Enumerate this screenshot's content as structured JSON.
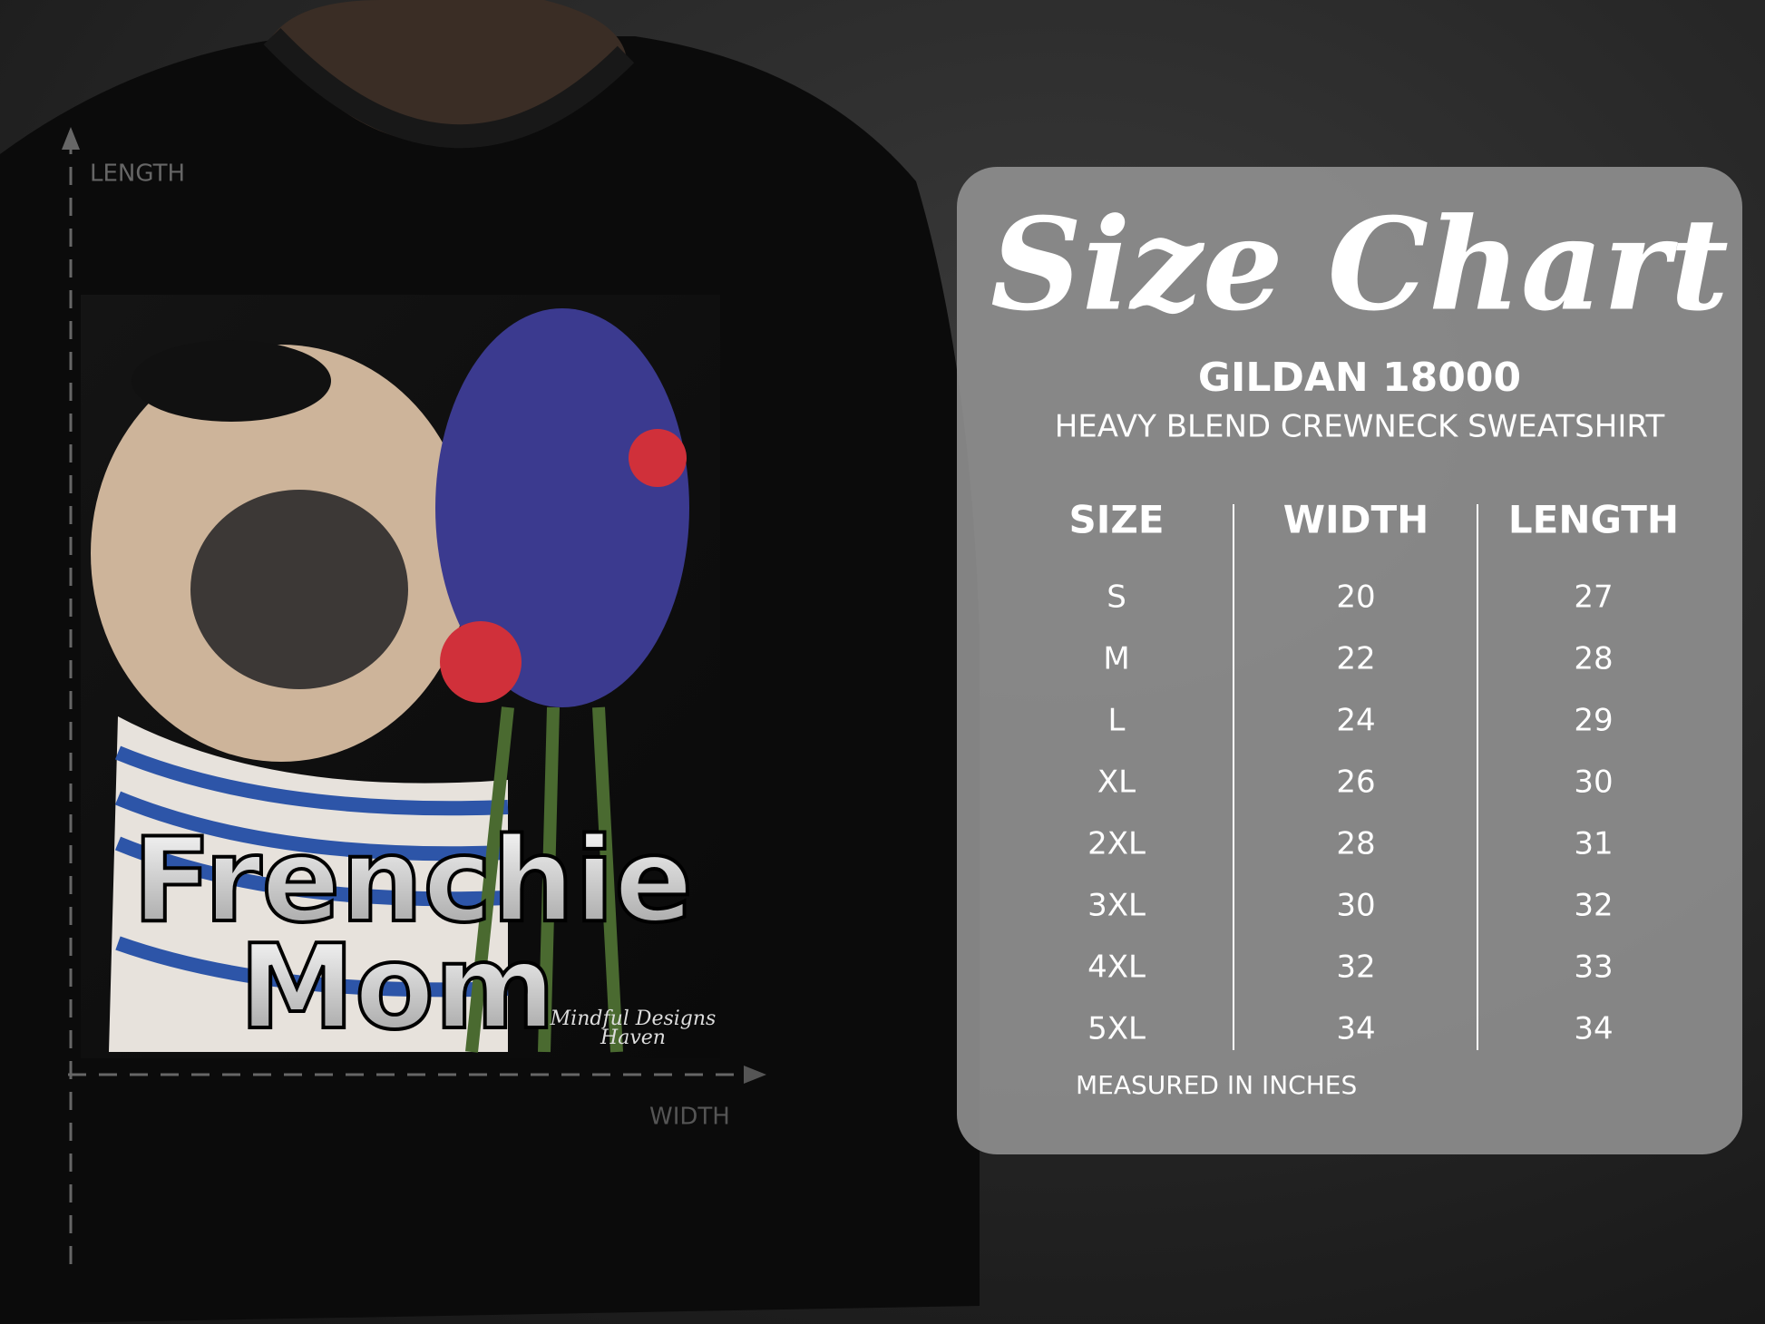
{
  "artwork": {
    "length_label": "LENGTH",
    "width_label": "WIDTH",
    "design_line_1": "Frenchie",
    "design_line_2": "Mom",
    "signature_line_1": "Mindful Designs",
    "signature_line_2": "Haven"
  },
  "size_chart": {
    "title": "Size Chart",
    "brand": "GILDAN 18000",
    "product": "HEAVY BLEND CREWNECK SWEATSHIRT",
    "columns": [
      "SIZE",
      "WIDTH",
      "LENGTH"
    ],
    "rows": [
      [
        "S",
        20,
        27
      ],
      [
        "M",
        22,
        28
      ],
      [
        "L",
        24,
        29
      ],
      [
        "XL",
        26,
        30
      ],
      [
        "2XL",
        28,
        31
      ],
      [
        "3XL",
        30,
        32
      ],
      [
        "4XL",
        32,
        33
      ],
      [
        "5XL",
        34,
        34
      ]
    ],
    "note": "MEASURED IN INCHES"
  }
}
